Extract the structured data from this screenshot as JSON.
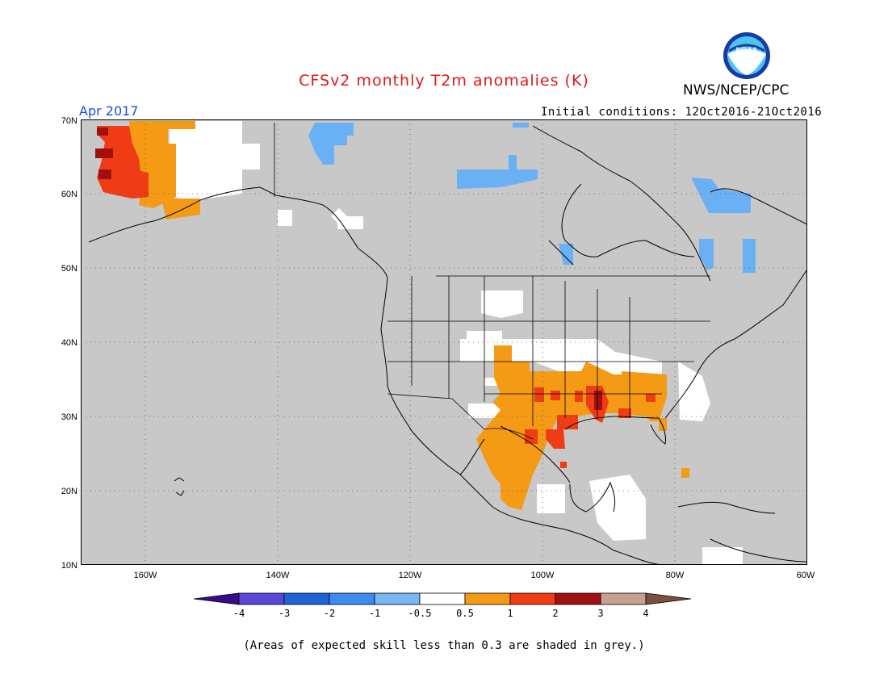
{
  "header": {
    "title": "CFSv2 monthly T2m anomalies (K)",
    "organization": "NWS/NCEP/CPC",
    "logo_text": "NOAA",
    "valid_period": "Apr 2017",
    "initial_conditions": "Initial conditions: 12Oct2016-21Oct2016"
  },
  "map": {
    "projection": "lat-lon",
    "lon_range": [
      -172,
      -60
    ],
    "lat_range": [
      10,
      70
    ],
    "lat_ticks": [
      "10N",
      "20N",
      "30N",
      "40N",
      "50N",
      "60N",
      "70N"
    ],
    "lon_ticks": [
      "160W",
      "140W",
      "120W",
      "100W",
      "80W",
      "60W"
    ],
    "background_color": "#c8c8c8",
    "anomaly_regions": [
      {
        "name": "alaska-strong-warm",
        "level": ">2",
        "color": "#a01010"
      },
      {
        "name": "alaska-warm",
        "level": "1 to 2",
        "color": "#f03c14"
      },
      {
        "name": "alaska-mild",
        "level": "0.5 to 1",
        "color": "#f49a14"
      },
      {
        "name": "south-central-us-warm",
        "level": "0.5 to 1",
        "color": "#f49a14"
      },
      {
        "name": "gulf-coast-warm",
        "level": "1 to 2",
        "color": "#f03c14"
      },
      {
        "name": "canada-cool",
        "level": "-1 to -0.5",
        "color": "#6ab0f4"
      }
    ]
  },
  "colorbar": {
    "labels": [
      "-4",
      "-3",
      "-2",
      "-1",
      "-0.5",
      "0.5",
      "1",
      "2",
      "3",
      "4"
    ],
    "colors": [
      "#3a0a8a",
      "#5a46d8",
      "#1e64d8",
      "#3c8cf0",
      "#78b8f4",
      "#ffffff",
      "#f49a14",
      "#f03c14",
      "#a01010",
      "#c8a090",
      "#7a5040"
    ]
  },
  "footnote": "(Areas of expected skill less than 0.3 are shaded in grey.)"
}
